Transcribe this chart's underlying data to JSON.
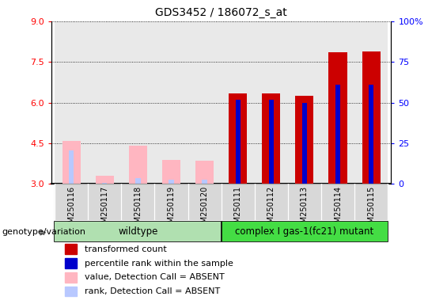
{
  "title": "GDS3452 / 186072_s_at",
  "samples": [
    "GSM250116",
    "GSM250117",
    "GSM250118",
    "GSM250119",
    "GSM250120",
    "GSM250111",
    "GSM250112",
    "GSM250113",
    "GSM250114",
    "GSM250115"
  ],
  "transformed_count": [
    null,
    null,
    null,
    null,
    null,
    6.35,
    6.35,
    6.25,
    7.85,
    7.9
  ],
  "percentile_rank_val": [
    null,
    null,
    null,
    null,
    null,
    6.1,
    6.1,
    6.0,
    6.65,
    6.65
  ],
  "absent_value": [
    4.6,
    3.3,
    4.4,
    3.9,
    3.85,
    null,
    null,
    null,
    null,
    null
  ],
  "absent_rank_val": [
    4.25,
    3.05,
    3.2,
    3.15,
    3.15,
    null,
    null,
    null,
    null,
    null
  ],
  "ylim_left": [
    3.0,
    9.0
  ],
  "yticks_left": [
    3.0,
    4.5,
    6.0,
    7.5,
    9.0
  ],
  "yticks_right": [
    0,
    25,
    50,
    75,
    100
  ],
  "color_transformed": "#cc0000",
  "color_percentile": "#0000cc",
  "color_absent_value": "#ffb6c1",
  "color_absent_rank": "#b8c8ff",
  "color_wt_bg": "#b0e0b0",
  "color_mut_bg": "#44dd44",
  "group_label_wildtype": "wildtype",
  "group_label_mutant": "complex I gas-1(fc21) mutant",
  "genotype_label": "genotype/variation",
  "tick_bg_color": "#c8c8c8",
  "legend_items": [
    {
      "label": "transformed count",
      "color": "#cc0000"
    },
    {
      "label": "percentile rank within the sample",
      "color": "#0000cc"
    },
    {
      "label": "value, Detection Call = ABSENT",
      "color": "#ffb6c1"
    },
    {
      "label": "rank, Detection Call = ABSENT",
      "color": "#b8c8ff"
    }
  ]
}
